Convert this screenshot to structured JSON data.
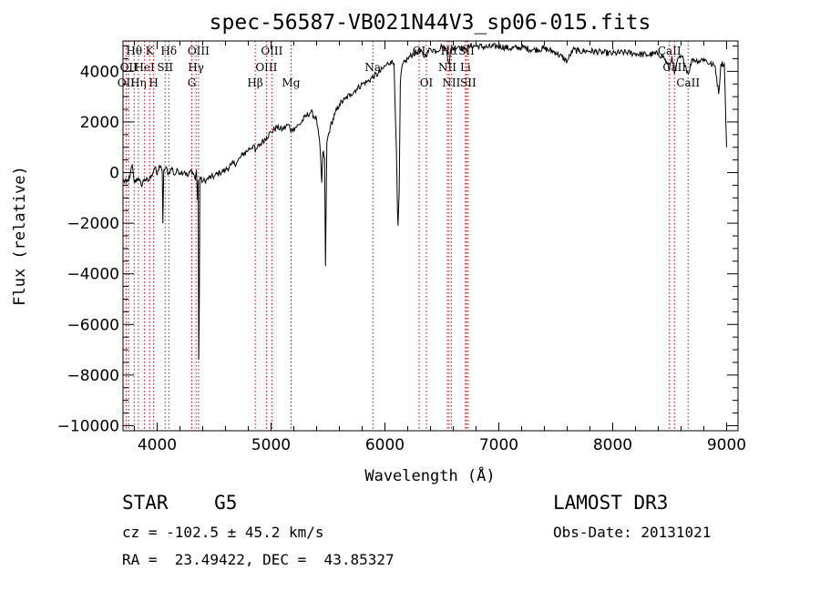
{
  "chart_data": {
    "type": "line",
    "title": "spec-56587-VB021N44V3_sp06-015.fits",
    "xlabel": "Wavelength (Å)",
    "ylabel": "Flux (relative)",
    "xlim": [
      3700,
      9100
    ],
    "ylim": [
      -10200,
      5200
    ],
    "x_ticks": [
      4000,
      5000,
      6000,
      7000,
      8000,
      9000
    ],
    "y_ticks": [
      -10000,
      -8000,
      -6000,
      -4000,
      -2000,
      0,
      2000,
      4000
    ],
    "grid": false,
    "series": [
      {
        "points": [
          [
            3700,
            -300
          ],
          [
            3730,
            -400
          ],
          [
            3760,
            -200
          ],
          [
            3780,
            300
          ],
          [
            3800,
            -400
          ],
          [
            3830,
            -200
          ],
          [
            3860,
            -500
          ],
          [
            3890,
            -250
          ],
          [
            3920,
            -350
          ],
          [
            3950,
            -100
          ],
          [
            3980,
            200
          ],
          [
            4000,
            -100
          ],
          [
            4020,
            300
          ],
          [
            4045,
            0
          ],
          [
            4050,
            -2000
          ],
          [
            4058,
            100
          ],
          [
            4075,
            200
          ],
          [
            4100,
            -50
          ],
          [
            4130,
            200
          ],
          [
            4150,
            -100
          ],
          [
            4180,
            100
          ],
          [
            4210,
            0
          ],
          [
            4240,
            50
          ],
          [
            4270,
            -150
          ],
          [
            4300,
            100
          ],
          [
            4325,
            -100
          ],
          [
            4335,
            -300
          ],
          [
            4345,
            100
          ],
          [
            4355,
            -1100
          ],
          [
            4360,
            -300
          ],
          [
            4365,
            -7400
          ],
          [
            4370,
            -5200
          ],
          [
            4375,
            -200
          ],
          [
            4400,
            -350
          ],
          [
            4430,
            -300
          ],
          [
            4460,
            -200
          ],
          [
            4500,
            -150
          ],
          [
            4550,
            0
          ],
          [
            4600,
            100
          ],
          [
            4650,
            300
          ],
          [
            4700,
            400
          ],
          [
            4750,
            700
          ],
          [
            4800,
            900
          ],
          [
            4850,
            1100
          ],
          [
            4861,
            800
          ],
          [
            4880,
            1000
          ],
          [
            4920,
            1200
          ],
          [
            4960,
            1400
          ],
          [
            5000,
            1600
          ],
          [
            5050,
            1800
          ],
          [
            5100,
            1700
          ],
          [
            5150,
            1900
          ],
          [
            5180,
            1650
          ],
          [
            5200,
            1750
          ],
          [
            5250,
            1900
          ],
          [
            5300,
            2200
          ],
          [
            5350,
            2400
          ],
          [
            5400,
            2100
          ],
          [
            5430,
            1000
          ],
          [
            5445,
            -400
          ],
          [
            5455,
            800
          ],
          [
            5470,
            600
          ],
          [
            5478,
            -3700
          ],
          [
            5490,
            1200
          ],
          [
            5520,
            1800
          ],
          [
            5560,
            2300
          ],
          [
            5600,
            2700
          ],
          [
            5650,
            2900
          ],
          [
            5700,
            3100
          ],
          [
            5750,
            3300
          ],
          [
            5800,
            3500
          ],
          [
            5850,
            3600
          ],
          [
            5900,
            3800
          ],
          [
            5940,
            3900
          ],
          [
            5980,
            4100
          ],
          [
            6000,
            4200
          ],
          [
            6050,
            4400
          ],
          [
            6080,
            4300
          ],
          [
            6100,
            1000
          ],
          [
            6110,
            -1500
          ],
          [
            6115,
            -2100
          ],
          [
            6125,
            -800
          ],
          [
            6135,
            3500
          ],
          [
            6150,
            4200
          ],
          [
            6200,
            4500
          ],
          [
            6250,
            4700
          ],
          [
            6300,
            4800
          ],
          [
            6350,
            4600
          ],
          [
            6400,
            4900
          ],
          [
            6450,
            4800
          ],
          [
            6500,
            5000
          ],
          [
            6540,
            4850
          ],
          [
            6563,
            4300
          ],
          [
            6580,
            4900
          ],
          [
            6650,
            5000
          ],
          [
            6700,
            4850
          ],
          [
            6750,
            5000
          ],
          [
            6800,
            5000
          ],
          [
            6900,
            4950
          ],
          [
            7000,
            5000
          ],
          [
            7100,
            4900
          ],
          [
            7200,
            4950
          ],
          [
            7300,
            4850
          ],
          [
            7400,
            4900
          ],
          [
            7500,
            4750
          ],
          [
            7600,
            4400
          ],
          [
            7650,
            4850
          ],
          [
            7700,
            4800
          ],
          [
            7800,
            4800
          ],
          [
            7900,
            4750
          ],
          [
            8000,
            4700
          ],
          [
            8100,
            4750
          ],
          [
            8200,
            4700
          ],
          [
            8300,
            4650
          ],
          [
            8400,
            4700
          ],
          [
            8450,
            4550
          ],
          [
            8498,
            4100
          ],
          [
            8520,
            4600
          ],
          [
            8542,
            3900
          ],
          [
            8580,
            4550
          ],
          [
            8620,
            4500
          ],
          [
            8662,
            3900
          ],
          [
            8700,
            4500
          ],
          [
            8750,
            4400
          ],
          [
            8800,
            4500
          ],
          [
            8850,
            4300
          ],
          [
            8900,
            4200
          ],
          [
            8930,
            3100
          ],
          [
            8950,
            4300
          ],
          [
            8980,
            4300
          ],
          [
            9000,
            1000
          ]
        ]
      }
    ],
    "line_markers": [
      {
        "wave": 3727,
        "label": "OII",
        "row": 2
      },
      {
        "wave": 3750,
        "label": "OII",
        "row": 1
      },
      {
        "wave": 3798,
        "label": "Hθ",
        "row": 0
      },
      {
        "wave": 3835,
        "label": "Hη",
        "row": 2
      },
      {
        "wave": 3889,
        "label": "HeI",
        "row": 1
      },
      {
        "wave": 3934,
        "label": "K",
        "row": 0
      },
      {
        "wave": 3969,
        "label": "H",
        "row": 2
      },
      {
        "wave": 4070,
        "label": "SII",
        "row": 1
      },
      {
        "wave": 4102,
        "label": "Hδ",
        "row": 0
      },
      {
        "wave": 4304,
        "label": "G",
        "row": 2
      },
      {
        "wave": 4341,
        "label": "Hγ",
        "row": 1
      },
      {
        "wave": 4363,
        "label": "OIII",
        "row": 0
      },
      {
        "wave": 4861,
        "label": "Hβ",
        "row": 2
      },
      {
        "wave": 4959,
        "label": "OIII",
        "row": 1
      },
      {
        "wave": 5007,
        "label": "OIII",
        "row": 0
      },
      {
        "wave": 5176,
        "label": "Mg",
        "row": 2
      },
      {
        "wave": 5894,
        "label": "Na",
        "row": 1
      },
      {
        "wave": 6300,
        "label": "OI",
        "row": 0
      },
      {
        "wave": 6364,
        "label": "OI",
        "row": 2
      },
      {
        "wave": 6548,
        "label": "NII",
        "row": 1
      },
      {
        "wave": 6563,
        "label": "Hα",
        "row": 0
      },
      {
        "wave": 6583,
        "label": "NII",
        "row": 2
      },
      {
        "wave": 6707,
        "label": "Li",
        "row": 1
      },
      {
        "wave": 6716,
        "label": "SII",
        "row": 0
      },
      {
        "wave": 6731,
        "label": "SII",
        "row": 2
      },
      {
        "wave": 8498,
        "label": "CaII",
        "row": 0
      },
      {
        "wave": 8542,
        "label": "CaII",
        "row": 1
      },
      {
        "wave": 8662,
        "label": "CaII",
        "row": 2
      }
    ]
  },
  "info": {
    "class_text": "STAR    G5",
    "survey_text": "LAMOST DR3",
    "cz_text": "cz = -102.5 ± 45.2 km/s",
    "obs_date_text": "Obs-Date: 20131021",
    "radec_text": "RA =  23.49422, DEC =  43.85327"
  },
  "colors": {
    "spectrum": "#000000",
    "line_marker": "#cc0000",
    "axes": "#000000"
  }
}
